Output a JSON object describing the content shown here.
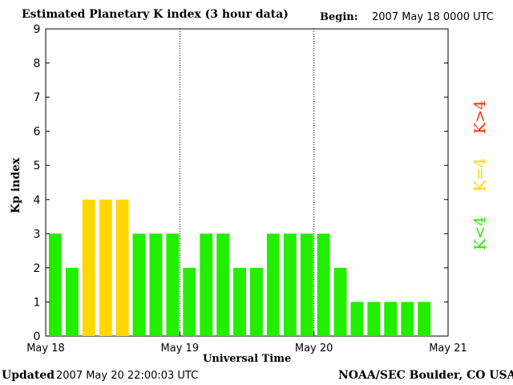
{
  "title": "Estimated Planetary K index (3 hour data)",
  "begin_label": "Begin:",
  "begin_value": "2007 May 18 0000 UTC",
  "footer_left_label": "Updated",
  "footer_left_value": "2007 May 20 22:00:03 UTC",
  "footer_right": "NOAA/SEC Boulder, CO USA",
  "legend": {
    "high": "K>4",
    "mid": "K=4",
    "low": "K<4"
  },
  "colors": {
    "low": "#22ee00",
    "mid": "#ffd700",
    "high": "#ff2a00"
  },
  "chart_data": {
    "type": "bar",
    "ylabel": "Kp index",
    "xlabel": "Universal Time",
    "ylim": [
      0,
      9
    ],
    "yticks": [
      0,
      1,
      2,
      3,
      4,
      5,
      6,
      7,
      8,
      9
    ],
    "xticks": [
      "May 18",
      "May 19",
      "May 20",
      "May 21"
    ],
    "interval_hours": 3,
    "values": [
      3,
      2,
      4,
      4,
      4,
      3,
      3,
      3,
      2,
      3,
      3,
      2,
      2,
      3,
      3,
      3,
      3,
      2,
      1,
      1,
      1,
      1,
      1
    ],
    "grid": "dotted vertical lines at day boundaries"
  }
}
